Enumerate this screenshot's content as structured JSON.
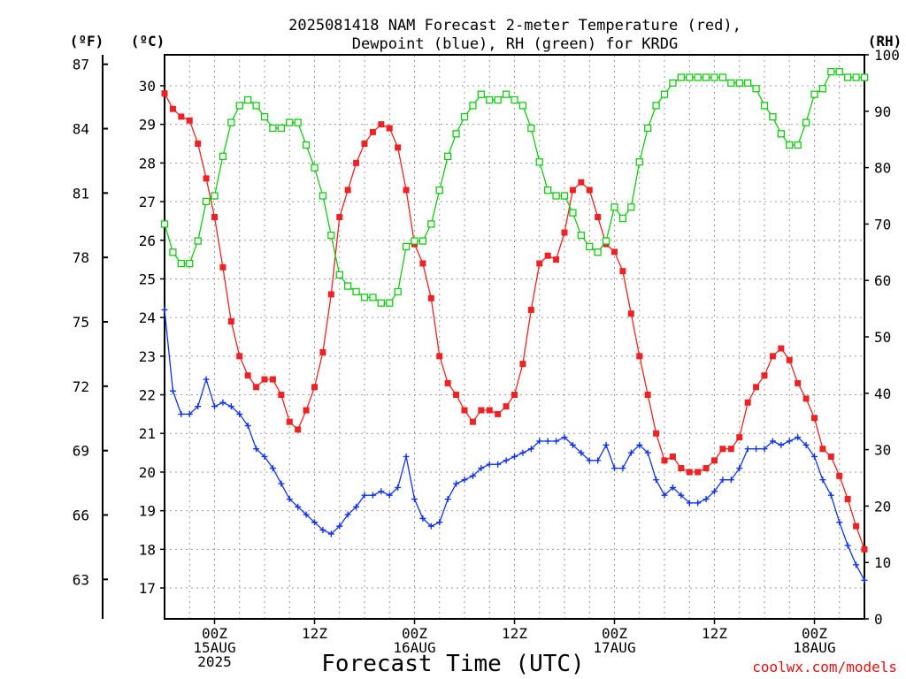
{
  "title_line1": "2025081418 NAM Forecast 2-meter Temperature (red),",
  "title_line2": "Dewpoint (blue), RH (green) for KRDG",
  "unit_f": "(ºF)",
  "unit_c": "(ºC)",
  "unit_rh": "(RH)",
  "xlabel": "Forecast Time (UTC)",
  "credit": "coolwx.com/models",
  "colors": {
    "temperature": "#ee2222",
    "dewpoint": "#1133ee",
    "rh": "#11cc11",
    "grid": "#999999",
    "axis": "#000000",
    "credit": "#e01010"
  },
  "chart_data": {
    "type": "line",
    "x_unit": "forecast hour from 2025-08-14 18Z",
    "x_range": [
      0,
      84
    ],
    "x_step": 1,
    "x_ticks": [
      {
        "hour": 6,
        "lines": [
          "00Z",
          "15AUG",
          "2025"
        ]
      },
      {
        "hour": 18,
        "lines": [
          "12Z"
        ]
      },
      {
        "hour": 30,
        "lines": [
          "00Z",
          "16AUG"
        ]
      },
      {
        "hour": 42,
        "lines": [
          "12Z"
        ]
      },
      {
        "hour": 54,
        "lines": [
          "00Z",
          "17AUG"
        ]
      },
      {
        "hour": 66,
        "lines": [
          "12Z"
        ]
      },
      {
        "hour": 78,
        "lines": [
          "00Z",
          "18AUG"
        ]
      }
    ],
    "y_left_c": {
      "range": [
        16.2,
        30.8
      ],
      "ticks": [
        17,
        18,
        19,
        20,
        21,
        22,
        23,
        24,
        25,
        26,
        27,
        28,
        29,
        30
      ]
    },
    "y_left_f": {
      "ticks": [
        63,
        66,
        69,
        72,
        75,
        78,
        81,
        84,
        87
      ]
    },
    "y_right_rh": {
      "range": [
        0,
        100
      ],
      "ticks": [
        0,
        10,
        20,
        30,
        40,
        50,
        60,
        70,
        80,
        90,
        100
      ]
    },
    "grid": true,
    "series": [
      {
        "key": "temperature",
        "axis": "celsius",
        "marker": "filled-square",
        "values": [
          29.8,
          29.4,
          29.2,
          29.1,
          28.5,
          27.6,
          26.6,
          25.3,
          23.9,
          23.0,
          22.5,
          22.2,
          22.4,
          22.4,
          22.0,
          21.3,
          21.1,
          21.6,
          22.2,
          23.1,
          24.6,
          26.6,
          27.3,
          28.0,
          28.5,
          28.8,
          29.0,
          28.9,
          28.4,
          27.3,
          25.9,
          25.4,
          24.5,
          23.0,
          22.3,
          22.0,
          21.6,
          21.3,
          21.6,
          21.6,
          21.5,
          21.7,
          22.0,
          22.8,
          24.2,
          25.4,
          25.6,
          25.5,
          26.2,
          27.3,
          27.5,
          27.3,
          26.6,
          25.9,
          25.7,
          25.2,
          24.1,
          23.0,
          22.0,
          21.0,
          20.3,
          20.4,
          20.1,
          20.0,
          20.0,
          20.1,
          20.3,
          20.6,
          20.6,
          20.9,
          21.8,
          22.2,
          22.5,
          23.0,
          23.2,
          22.9,
          22.3,
          21.9,
          21.4,
          20.6,
          20.4,
          19.9,
          19.3,
          18.6,
          18.0
        ]
      },
      {
        "key": "dewpoint",
        "axis": "celsius",
        "marker": "plus",
        "values": [
          24.2,
          22.1,
          21.5,
          21.5,
          21.7,
          22.4,
          21.7,
          21.8,
          21.7,
          21.5,
          21.2,
          20.6,
          20.4,
          20.1,
          19.7,
          19.3,
          19.1,
          18.9,
          18.7,
          18.5,
          18.4,
          18.6,
          18.9,
          19.1,
          19.4,
          19.4,
          19.5,
          19.4,
          19.6,
          20.4,
          19.3,
          18.8,
          18.6,
          18.7,
          19.3,
          19.7,
          19.8,
          19.9,
          20.1,
          20.2,
          20.2,
          20.3,
          20.4,
          20.5,
          20.6,
          20.8,
          20.8,
          20.8,
          20.9,
          20.7,
          20.5,
          20.3,
          20.3,
          20.7,
          20.1,
          20.1,
          20.5,
          20.7,
          20.5,
          19.8,
          19.4,
          19.6,
          19.4,
          19.2,
          19.2,
          19.3,
          19.5,
          19.8,
          19.8,
          20.1,
          20.6,
          20.6,
          20.6,
          20.8,
          20.7,
          20.8,
          20.9,
          20.7,
          20.4,
          19.8,
          19.4,
          18.7,
          18.1,
          17.6,
          17.2
        ]
      },
      {
        "key": "rh",
        "axis": "rh",
        "marker": "open-square",
        "values": [
          70,
          65,
          63,
          63,
          67,
          74,
          75,
          82,
          88,
          91,
          92,
          91,
          89,
          87,
          87,
          88,
          88,
          84,
          80,
          75,
          68,
          61,
          59,
          58,
          57,
          57,
          56,
          56,
          58,
          66,
          67,
          67,
          70,
          76,
          82,
          86,
          89,
          91,
          93,
          92,
          92,
          93,
          92,
          91,
          87,
          81,
          76,
          75,
          75,
          72,
          68,
          66,
          65,
          67,
          73,
          71,
          73,
          81,
          87,
          91,
          93,
          95,
          96,
          96,
          96,
          96,
          96,
          96,
          95,
          95,
          95,
          94,
          91,
          89,
          86,
          84,
          84,
          88,
          93,
          94,
          97,
          97,
          96,
          96,
          96
        ]
      }
    ]
  }
}
